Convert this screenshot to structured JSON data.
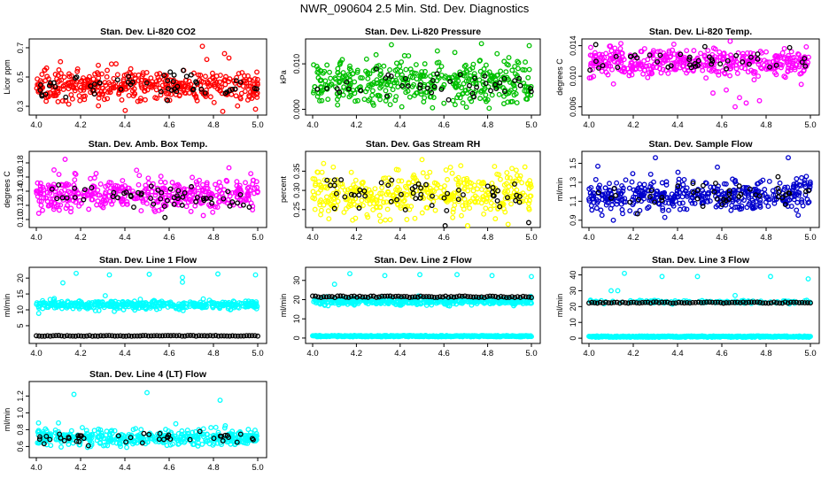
{
  "title": "NWR_090604  2.5 Min. Std. Dev. Diagnostics",
  "colors": {
    "overlay": "#000000",
    "axis": "#000000"
  },
  "chart_data": [
    {
      "type": "scatter",
      "id": "co2",
      "title": "Stan. Dev. Li-820 CO2",
      "ylabel": "Licor ppm",
      "xlim": [
        3.98,
        5.02
      ],
      "ylim": [
        0.27,
        0.73
      ],
      "xticks": [
        "4.0",
        "4.2",
        "4.4",
        "4.6",
        "4.8",
        "5.0"
      ],
      "xtick_values": [
        4.0,
        4.2,
        4.4,
        4.6,
        4.8,
        5.0
      ],
      "yticks": [
        "0.3",
        "0.5",
        "0.7"
      ],
      "ytick_values": [
        0.3,
        0.5,
        0.7
      ],
      "color": "#ff0000",
      "center": 0.44,
      "spread": 0.05,
      "count": 420,
      "outliers": [
        [
          4.75,
          0.71
        ],
        [
          4.85,
          0.66
        ],
        [
          4.87,
          0.63
        ],
        [
          4.77,
          0.62
        ],
        [
          4.99,
          0.28
        ],
        [
          4.36,
          0.59
        ],
        [
          4.28,
          0.58
        ]
      ],
      "overlay": {
        "mode": "scatter",
        "center": 0.45,
        "spread": 0.04,
        "count": 55
      }
    },
    {
      "type": "scatter",
      "id": "pressure",
      "title": "Stan. Dev. Li-820 Pressure",
      "ylabel": "kPa",
      "xlim": [
        3.98,
        5.02
      ],
      "ylim": [
        -0.0003,
        0.0145
      ],
      "xticks": [
        "4.0",
        "4.2",
        "4.4",
        "4.6",
        "4.8",
        "5.0"
      ],
      "xtick_values": [
        4.0,
        4.2,
        4.4,
        4.6,
        4.8,
        5.0
      ],
      "yticks": [
        "0.000",
        "0.010"
      ],
      "ytick_values": [
        0.0,
        0.01
      ],
      "color": "#00c000",
      "center": 0.006,
      "spread": 0.0025,
      "count": 420,
      "outliers": [
        [
          4.36,
          0.0142
        ],
        [
          4.29,
          0.012
        ],
        [
          4.99,
          0.014
        ],
        [
          4.65,
          0.0125
        ],
        [
          4.42,
          0.0118
        ]
      ],
      "overlay": {
        "mode": "scatter",
        "center": 0.0055,
        "spread": 0.0015,
        "count": 45
      }
    },
    {
      "type": "scatter",
      "id": "temp",
      "title": "Stan. Dev. Li-820 Temp.",
      "ylabel": "degrees C",
      "xlim": [
        3.98,
        5.02
      ],
      "ylim": [
        0.0055,
        0.0143
      ],
      "xticks": [
        "4.0",
        "4.2",
        "4.4",
        "4.6",
        "4.8",
        "5.0"
      ],
      "xtick_values": [
        4.0,
        4.2,
        4.4,
        4.6,
        4.8,
        5.0
      ],
      "yticks": [
        "0.006",
        "0.010",
        "0.014"
      ],
      "ytick_values": [
        0.006,
        0.01,
        0.014
      ],
      "color": "#ff00ff",
      "center": 0.0118,
      "spread": 0.0009,
      "count": 420,
      "outliers": [
        [
          4.66,
          0.006
        ],
        [
          4.71,
          0.0065
        ],
        [
          4.68,
          0.0072
        ],
        [
          4.56,
          0.0078
        ],
        [
          4.62,
          0.0082
        ],
        [
          4.77,
          0.0068
        ]
      ],
      "overlay": {
        "mode": "scatter",
        "center": 0.012,
        "spread": 0.0008,
        "count": 45
      }
    },
    {
      "type": "scatter",
      "id": "ambtemp",
      "title": "Stan. Dev. Amb. Box Temp.",
      "ylabel": "degrees C",
      "xlim": [
        3.98,
        5.02
      ],
      "ylim": [
        0.095,
        0.19
      ],
      "xticks": [
        "4.0",
        "4.2",
        "4.4",
        "4.6",
        "4.8",
        "5.0"
      ],
      "xtick_values": [
        4.0,
        4.2,
        4.4,
        4.6,
        4.8,
        5.0
      ],
      "yticks": [
        "0.10",
        "0.12",
        "0.14",
        "0.16",
        "0.18"
      ],
      "ytick_values": [
        0.1,
        0.12,
        0.14,
        0.16,
        0.18
      ],
      "color": "#ff00ff",
      "center": 0.137,
      "spread": 0.011,
      "count": 420,
      "outliers": [
        [
          4.13,
          0.185
        ],
        [
          4.08,
          0.17
        ],
        [
          4.87,
          0.173
        ],
        [
          4.27,
          0.165
        ]
      ],
      "overlay": {
        "mode": "scatter",
        "center": 0.132,
        "spread": 0.01,
        "count": 55
      }
    },
    {
      "type": "scatter",
      "id": "rh",
      "title": "Stan. Dev. Gas Stream RH",
      "ylabel": "percent",
      "xlim": [
        3.98,
        5.02
      ],
      "ylim": [
        0.215,
        0.39
      ],
      "xticks": [
        "4.0",
        "4.2",
        "4.4",
        "4.6",
        "4.8",
        "5.0"
      ],
      "xtick_values": [
        4.0,
        4.2,
        4.4,
        4.6,
        4.8,
        5.0
      ],
      "yticks": [
        "0.25",
        "0.30",
        "0.35"
      ],
      "ytick_values": [
        0.25,
        0.3,
        0.35
      ],
      "color": "#ffff00",
      "center": 0.29,
      "spread": 0.03,
      "count": 420,
      "outliers": [
        [
          4.5,
          0.38
        ],
        [
          4.05,
          0.37
        ],
        [
          4.31,
          0.22
        ],
        [
          4.63,
          0.36
        ]
      ],
      "overlay": {
        "mode": "scatter",
        "center": 0.29,
        "spread": 0.026,
        "count": 55
      }
    },
    {
      "type": "scatter",
      "id": "sampleflow",
      "title": "Stan. Dev. Sample Flow",
      "ylabel": "ml/min",
      "xlim": [
        3.98,
        5.02
      ],
      "ylim": [
        0.87,
        1.58
      ],
      "xticks": [
        "4.0",
        "4.2",
        "4.4",
        "4.6",
        "4.8",
        "5.0"
      ],
      "xtick_values": [
        4.0,
        4.2,
        4.4,
        4.6,
        4.8,
        5.0
      ],
      "yticks": [
        "0.9",
        "1.1",
        "1.3",
        "1.5"
      ],
      "ytick_values": [
        0.9,
        1.1,
        1.3,
        1.5
      ],
      "color": "#0000cc",
      "center": 1.16,
      "spread": 0.09,
      "count": 420,
      "outliers": [
        [
          4.3,
          1.56
        ],
        [
          4.9,
          1.56
        ],
        [
          4.04,
          1.47
        ],
        [
          4.11,
          0.9
        ],
        [
          4.58,
          1.46
        ]
      ],
      "overlay": {
        "mode": "scatter",
        "center": 1.18,
        "spread": 0.08,
        "count": 45
      }
    },
    {
      "type": "scatter",
      "id": "line1",
      "title": "Stan. Dev. Line 1 Flow",
      "ylabel": "ml/min",
      "xlim": [
        3.98,
        5.02
      ],
      "ylim": [
        0.8,
        22.0
      ],
      "xticks": [
        "4.0",
        "4.2",
        "4.4",
        "4.6",
        "4.8",
        "5.0"
      ],
      "xtick_values": [
        4.0,
        4.2,
        4.4,
        4.6,
        4.8,
        5.0
      ],
      "yticks": [
        "5",
        "10",
        "15",
        "20"
      ],
      "ytick_values": [
        5,
        10,
        15,
        20
      ],
      "color": "#00ffff",
      "center": 11.6,
      "spread": 0.7,
      "count": 420,
      "outliers": [
        [
          4.12,
          18.5
        ],
        [
          4.18,
          21.5
        ],
        [
          4.33,
          21.0
        ],
        [
          4.51,
          21.2
        ],
        [
          4.66,
          18.7
        ],
        [
          4.82,
          21.3
        ],
        [
          4.99,
          21.0
        ],
        [
          4.66,
          20.2
        ]
      ],
      "overlay": {
        "mode": "line",
        "level": 1.8,
        "jitter": 0.12,
        "count": 80
      }
    },
    {
      "type": "scatter",
      "id": "line2",
      "title": "Stan. Dev. Line 2 Flow",
      "ylabel": "ml/min",
      "xlim": [
        3.98,
        5.02
      ],
      "ylim": [
        -0.5,
        34.5
      ],
      "xticks": [
        "4.0",
        "4.2",
        "4.4",
        "4.6",
        "4.8",
        "5.0"
      ],
      "xtick_values": [
        4.0,
        4.2,
        4.4,
        4.6,
        4.8,
        5.0
      ],
      "yticks": [
        "0",
        "10",
        "20",
        "30"
      ],
      "ytick_values": [
        0,
        10,
        20,
        30
      ],
      "color": "#00ffff",
      "center": 19.0,
      "spread": 0.9,
      "count": 380,
      "outliers": [
        [
          4.1,
          28.0
        ],
        [
          4.17,
          33.5
        ],
        [
          4.33,
          32.5
        ],
        [
          4.49,
          33.0
        ],
        [
          4.66,
          33.0
        ],
        [
          4.82,
          32.5
        ],
        [
          5.0,
          32.0
        ]
      ],
      "baseline": {
        "level": 1.0,
        "count": 300
      },
      "overlay": {
        "mode": "line",
        "level": 21.5,
        "jitter": 0.4,
        "count": 80
      }
    },
    {
      "type": "scatter",
      "id": "line3",
      "title": "Stan. Dev. Line 3 Flow",
      "ylabel": "ml/min",
      "xlim": [
        3.98,
        5.02
      ],
      "ylim": [
        -0.5,
        42.0
      ],
      "xticks": [
        "4.0",
        "4.2",
        "4.4",
        "4.6",
        "4.8",
        "5.0"
      ],
      "xtick_values": [
        4.0,
        4.2,
        4.4,
        4.6,
        4.8,
        5.0
      ],
      "yticks": [
        "0",
        "10",
        "20",
        "30",
        "40"
      ],
      "ytick_values": [
        0,
        10,
        20,
        30,
        40
      ],
      "color": "#00ffff",
      "center": 23.0,
      "spread": 0.5,
      "count": 120,
      "outliers": [
        [
          4.1,
          30.0
        ],
        [
          4.13,
          30.0
        ],
        [
          4.16,
          41.0
        ],
        [
          4.33,
          39.0
        ],
        [
          4.49,
          39.0
        ],
        [
          4.66,
          27.0
        ],
        [
          4.82,
          39.0
        ],
        [
          4.99,
          37.5
        ]
      ],
      "baseline": {
        "level": 1.0,
        "count": 300
      },
      "overlay": {
        "mode": "line",
        "level": 22.5,
        "jitter": 0.35,
        "count": 80
      }
    },
    {
      "type": "scatter",
      "id": "line4",
      "title": "Stan. Dev. Line 4 (LT) Flow",
      "ylabel": "ml/min",
      "xlim": [
        3.98,
        5.02
      ],
      "ylim": [
        0.52,
        1.32
      ],
      "xticks": [
        "4.0",
        "4.2",
        "4.4",
        "4.6",
        "4.8",
        "5.0"
      ],
      "xtick_values": [
        4.0,
        4.2,
        4.4,
        4.6,
        4.8,
        5.0
      ],
      "yticks": [
        "0.6",
        "0.8",
        "1.0",
        "1.2"
      ],
      "ytick_values": [
        0.6,
        0.8,
        1.0,
        1.2
      ],
      "color": "#00ffff",
      "center": 0.7,
      "spread": 0.045,
      "count": 420,
      "outliers": [
        [
          4.17,
          1.22
        ],
        [
          4.5,
          1.24
        ],
        [
          4.83,
          1.15
        ],
        [
          4.01,
          0.88
        ],
        [
          4.1,
          0.88
        ],
        [
          4.63,
          0.87
        ]
      ],
      "overlay": {
        "mode": "scatter",
        "center": 0.7,
        "spread": 0.04,
        "count": 45
      }
    }
  ]
}
